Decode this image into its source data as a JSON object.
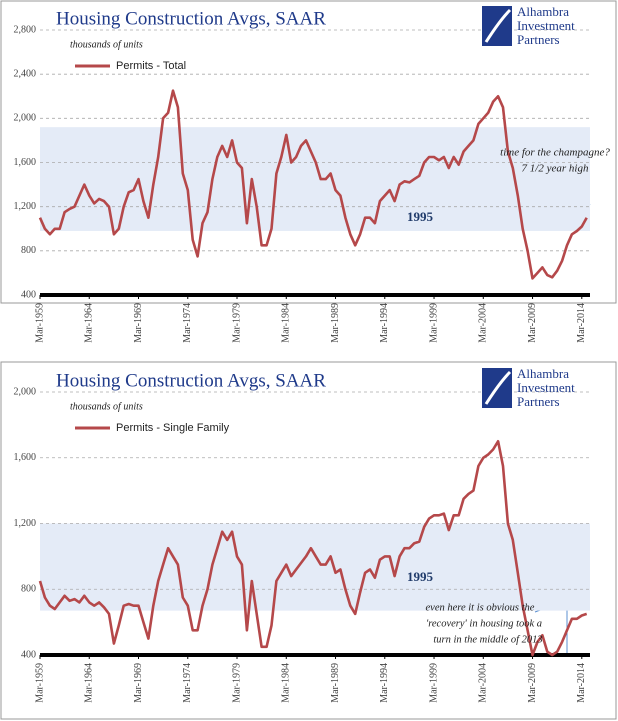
{
  "charts": [
    {
      "chart_data": {
        "type": "line",
        "title": "Housing Construction Avgs, SAAR",
        "y_label": "thousands of units",
        "logo": [
          "Alhambra",
          "Investment",
          "Partners"
        ],
        "annotations": [
          "1995",
          "time for the champagne?",
          "7 1/2 year high"
        ],
        "shaded_range": [
          980,
          1920
        ],
        "ylim": [
          400,
          2800
        ],
        "yticks": [
          400,
          800,
          {
            "value": 1200,
            "label": "1,200"
          },
          {
            "value": 1600,
            "label": "1,600"
          },
          {
            "value": 2000,
            "label": "2,000"
          },
          {
            "value": 2400,
            "label": "2,400"
          },
          {
            "value": 2800,
            "label": "2,800"
          }
        ],
        "xlim": [
          "1959-03",
          "2015-01"
        ],
        "xticks": [
          {
            "value": "1959-03",
            "label": "Mar-1959"
          },
          {
            "value": "1964-03",
            "label": "Mar-1964"
          },
          {
            "value": "1969-03",
            "label": "Mar-1969"
          },
          {
            "value": "1974-03",
            "label": "Mar-1974"
          },
          {
            "value": "1979-03",
            "label": "Mar-1979"
          },
          {
            "value": "1984-03",
            "label": "Mar-1984"
          },
          {
            "value": "1989-03",
            "label": "Mar-1989"
          },
          {
            "value": "1994-03",
            "label": "Mar-1994"
          },
          {
            "value": "1999-03",
            "label": "Mar-1999"
          },
          {
            "value": "2004-03",
            "label": "Mar-2004"
          },
          {
            "value": "2009-03",
            "label": "Mar-2009"
          },
          {
            "value": "2014-03",
            "label": "Mar-2014"
          }
        ],
        "grid": true,
        "x": [
          "1959-03",
          "1959-09",
          "1960-03",
          "1960-09",
          "1961-03",
          "1961-09",
          "1962-03",
          "1962-09",
          "1963-03",
          "1963-09",
          "1964-03",
          "1964-09",
          "1965-03",
          "1965-09",
          "1966-03",
          "1966-09",
          "1967-03",
          "1967-09",
          "1968-03",
          "1968-09",
          "1969-03",
          "1969-09",
          "1970-03",
          "1970-09",
          "1971-03",
          "1971-09",
          "1972-03",
          "1972-09",
          "1973-03",
          "1973-09",
          "1974-03",
          "1974-09",
          "1975-03",
          "1975-09",
          "1976-03",
          "1976-09",
          "1977-03",
          "1977-09",
          "1978-03",
          "1978-09",
          "1979-03",
          "1979-09",
          "1980-03",
          "1980-09",
          "1981-03",
          "1981-09",
          "1982-03",
          "1982-09",
          "1983-03",
          "1983-09",
          "1984-03",
          "1984-09",
          "1985-03",
          "1985-09",
          "1986-03",
          "1986-09",
          "1987-03",
          "1987-09",
          "1988-03",
          "1988-09",
          "1989-03",
          "1989-09",
          "1990-03",
          "1990-09",
          "1991-03",
          "1991-09",
          "1992-03",
          "1992-09",
          "1993-03",
          "1993-09",
          "1994-03",
          "1994-09",
          "1995-03",
          "1995-09",
          "1996-03",
          "1996-09",
          "1997-03",
          "1997-09",
          "1998-03",
          "1998-09",
          "1999-03",
          "1999-09",
          "2000-03",
          "2000-09",
          "2001-03",
          "2001-09",
          "2002-03",
          "2002-09",
          "2003-03",
          "2003-09",
          "2004-03",
          "2004-09",
          "2005-03",
          "2005-09",
          "2006-03",
          "2006-09",
          "2007-03",
          "2007-09",
          "2008-03",
          "2008-09",
          "2009-03",
          "2009-09",
          "2010-03",
          "2010-09",
          "2011-03",
          "2011-09",
          "2012-03",
          "2012-09",
          "2013-03",
          "2013-09",
          "2014-03",
          "2014-09"
        ],
        "series": [
          {
            "name": "Permits - Total",
            "color": "#b5484a",
            "values": [
              1100,
              1000,
              950,
              1000,
              1000,
              1150,
              1180,
              1200,
              1300,
              1400,
              1300,
              1230,
              1270,
              1250,
              1200,
              950,
              1000,
              1200,
              1330,
              1350,
              1450,
              1250,
              1100,
              1400,
              1650,
              2000,
              2050,
              2250,
              2100,
              1500,
              1350,
              900,
              750,
              1050,
              1150,
              1450,
              1650,
              1750,
              1650,
              1800,
              1600,
              1550,
              1050,
              1450,
              1200,
              850,
              850,
              1000,
              1500,
              1650,
              1850,
              1600,
              1650,
              1750,
              1800,
              1700,
              1600,
              1450,
              1450,
              1500,
              1350,
              1300,
              1100,
              950,
              850,
              950,
              1100,
              1100,
              1050,
              1250,
              1300,
              1350,
              1250,
              1400,
              1430,
              1420,
              1450,
              1480,
              1600,
              1650,
              1650,
              1620,
              1650,
              1550,
              1650,
              1580,
              1700,
              1750,
              1800,
              1950,
              2000,
              2050,
              2150,
              2200,
              2100,
              1700,
              1550,
              1300,
              1000,
              800,
              550,
              600,
              650,
              580,
              560,
              620,
              710,
              850,
              950,
              980,
              1020,
              1100
            ]
          }
        ]
      }
    },
    {
      "chart_data": {
        "type": "line",
        "title": "Housing Construction Avgs, SAAR",
        "y_label": "thousands of units",
        "logo": [
          "Alhambra",
          "Investment",
          "Partners"
        ],
        "annotations": [
          "1995",
          "even here it is obvious the",
          "'recovery' in housing took a",
          "turn in the middle of 2013"
        ],
        "shaded_range": [
          670,
          1200
        ],
        "ylim": [
          400,
          2000
        ],
        "yticks": [
          400,
          800,
          {
            "value": 1200,
            "label": "1,200"
          },
          {
            "value": 1600,
            "label": "1,600"
          },
          {
            "value": 2000,
            "label": "2,000"
          }
        ],
        "xlim": [
          "1959-03",
          "2015-01"
        ],
        "xticks": [
          {
            "value": "1959-03",
            "label": "Mar-1959"
          },
          {
            "value": "1964-03",
            "label": "Mar-1964"
          },
          {
            "value": "1969-03",
            "label": "Mar-1969"
          },
          {
            "value": "1974-03",
            "label": "Mar-1974"
          },
          {
            "value": "1979-03",
            "label": "Mar-1979"
          },
          {
            "value": "1984-03",
            "label": "Mar-1984"
          },
          {
            "value": "1989-03",
            "label": "Mar-1989"
          },
          {
            "value": "1994-03",
            "label": "Mar-1994"
          },
          {
            "value": "1999-03",
            "label": "Mar-1999"
          },
          {
            "value": "2004-03",
            "label": "Mar-2004"
          },
          {
            "value": "2009-03",
            "label": "Mar-2009"
          },
          {
            "value": "2014-03",
            "label": "Mar-2014"
          }
        ],
        "grid": true,
        "x": [
          "1959-03",
          "1959-09",
          "1960-03",
          "1960-09",
          "1961-03",
          "1961-09",
          "1962-03",
          "1962-09",
          "1963-03",
          "1963-09",
          "1964-03",
          "1964-09",
          "1965-03",
          "1965-09",
          "1966-03",
          "1966-09",
          "1967-03",
          "1967-09",
          "1968-03",
          "1968-09",
          "1969-03",
          "1969-09",
          "1970-03",
          "1970-09",
          "1971-03",
          "1971-09",
          "1972-03",
          "1972-09",
          "1973-03",
          "1973-09",
          "1974-03",
          "1974-09",
          "1975-03",
          "1975-09",
          "1976-03",
          "1976-09",
          "1977-03",
          "1977-09",
          "1978-03",
          "1978-09",
          "1979-03",
          "1979-09",
          "1980-03",
          "1980-09",
          "1981-03",
          "1981-09",
          "1982-03",
          "1982-09",
          "1983-03",
          "1983-09",
          "1984-03",
          "1984-09",
          "1985-03",
          "1985-09",
          "1986-03",
          "1986-09",
          "1987-03",
          "1987-09",
          "1988-03",
          "1988-09",
          "1989-03",
          "1989-09",
          "1990-03",
          "1990-09",
          "1991-03",
          "1991-09",
          "1992-03",
          "1992-09",
          "1993-03",
          "1993-09",
          "1994-03",
          "1994-09",
          "1995-03",
          "1995-09",
          "1996-03",
          "1996-09",
          "1997-03",
          "1997-09",
          "1998-03",
          "1998-09",
          "1999-03",
          "1999-09",
          "2000-03",
          "2000-09",
          "2001-03",
          "2001-09",
          "2002-03",
          "2002-09",
          "2003-03",
          "2003-09",
          "2004-03",
          "2004-09",
          "2005-03",
          "2005-09",
          "2006-03",
          "2006-09",
          "2007-03",
          "2007-09",
          "2008-03",
          "2008-09",
          "2009-03",
          "2009-09",
          "2010-03",
          "2010-09",
          "2011-03",
          "2011-09",
          "2012-03",
          "2012-09",
          "2013-03",
          "2013-09",
          "2014-03",
          "2014-09"
        ],
        "series": [
          {
            "name": "Permits - Single Family",
            "color": "#b5484a",
            "values": [
              850,
              750,
              700,
              680,
              720,
              760,
              730,
              740,
              720,
              760,
              720,
              700,
              720,
              690,
              650,
              470,
              580,
              700,
              710,
              700,
              700,
              600,
              500,
              700,
              850,
              950,
              1050,
              1000,
              950,
              750,
              700,
              550,
              550,
              700,
              800,
              950,
              1050,
              1150,
              1100,
              1150,
              1000,
              950,
              550,
              850,
              650,
              450,
              450,
              580,
              850,
              900,
              950,
              880,
              920,
              960,
              1000,
              1050,
              1000,
              950,
              950,
              1000,
              900,
              920,
              800,
              700,
              650,
              780,
              900,
              920,
              870,
              980,
              1000,
              1000,
              880,
              1000,
              1050,
              1050,
              1080,
              1090,
              1180,
              1230,
              1250,
              1250,
              1260,
              1160,
              1250,
              1250,
              1350,
              1380,
              1400,
              1550,
              1600,
              1620,
              1650,
              1700,
              1550,
              1200,
              1100,
              900,
              700,
              550,
              400,
              480,
              520,
              420,
              400,
              420,
              480,
              550,
              620,
              620,
              640,
              650
            ]
          }
        ]
      }
    }
  ]
}
